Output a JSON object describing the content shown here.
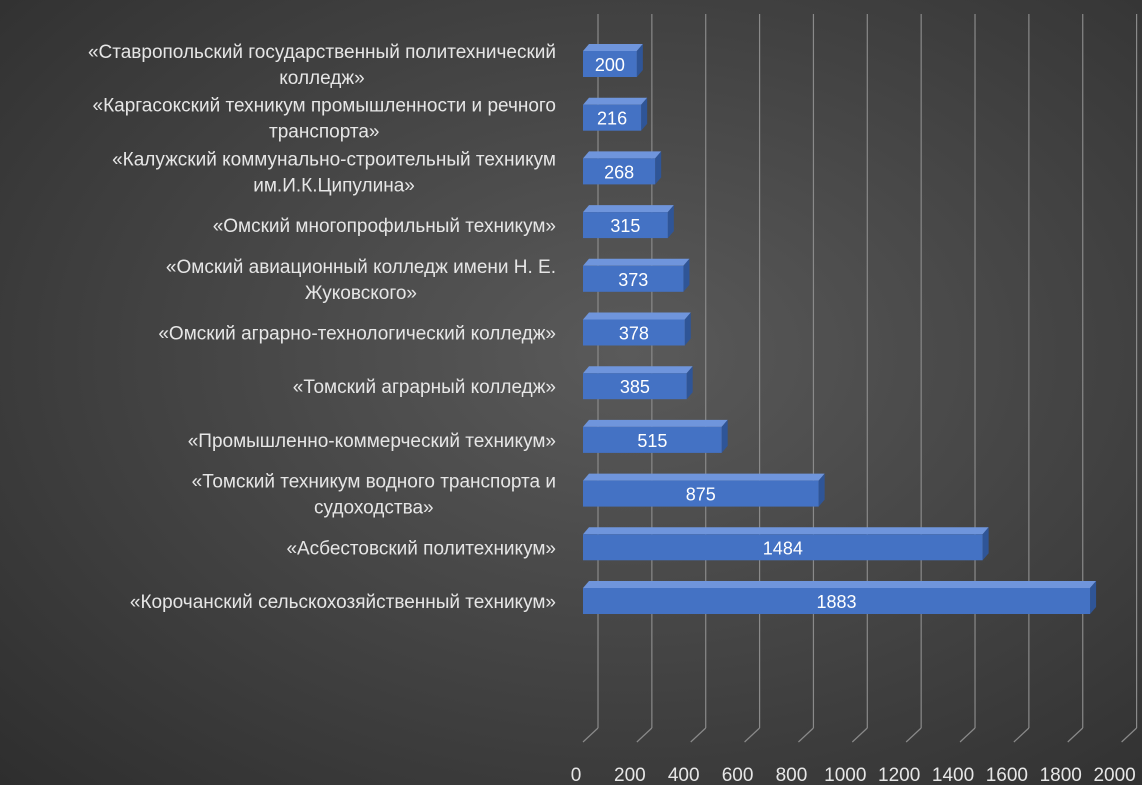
{
  "chart_data": {
    "type": "bar",
    "orientation": "horizontal",
    "style": "3d",
    "categories": [
      "«Ставропольский государственный политехнический колледж»",
      "«Каргасокский техникум промышленности и речного транспорта»",
      "«Калужский коммунально-строительный техникум им.И.К.Ципулина»",
      "«Омский многопрофильный техникум»",
      "«Омский авиационный колледж имени Н. Е. Жуковского»",
      "«Омский аграрно-технологический колледж»",
      "«Томский аграрный колледж»",
      "«Промышленно-коммерческий техникум»",
      "«Томский техникум водного транспорта и судоходства»",
      "«Асбестовский политехникум»",
      "«Корочанский сельскохозяйственный техникум»"
    ],
    "category_lines": [
      [
        "«Ставропольский государственный политехнический",
        "колледж»"
      ],
      [
        "«Каргасокский техникум промышленности и речного",
        "транспорта»"
      ],
      [
        "«Калужский коммунально-строительный техникум",
        "им.И.К.Ципулина»"
      ],
      [
        "«Омский многопрофильный техникум»"
      ],
      [
        "«Омский авиационный колледж имени Н. Е.",
        "Жуковского»"
      ],
      [
        "«Омский аграрно-технологический колледж»"
      ],
      [
        "«Томский аграрный колледж»"
      ],
      [
        "«Промышленно-коммерческий техникум»"
      ],
      [
        "«Томский техникум водного транспорта и",
        "судоходства»"
      ],
      [
        "«Асбестовский политехникум»"
      ],
      [
        "«Корочанский сельскохозяйственный техникум»"
      ]
    ],
    "values": [
      200,
      216,
      268,
      315,
      373,
      378,
      385,
      515,
      875,
      1484,
      1883
    ],
    "data_labels": [
      "200",
      "216",
      "268",
      "315",
      "373",
      "378",
      "385",
      "515",
      "875",
      "1484",
      "1883"
    ],
    "xlim": [
      0,
      2000
    ],
    "x_ticks": [
      0,
      200,
      400,
      600,
      800,
      1000,
      1200,
      1400,
      1600,
      1800,
      2000
    ],
    "x_tick_labels": [
      "0",
      "200",
      "400",
      "600",
      "800",
      "1000",
      "1200",
      "1400",
      "1600",
      "1800",
      "2000"
    ],
    "title": "",
    "xlabel": "",
    "ylabel": "",
    "grid": true,
    "legend": "none",
    "colors": {
      "bar_front": "#4472c4",
      "bar_top": "#6f95dc",
      "bar_side": "#2f5597",
      "label_text": "#ffffff",
      "grid": "#8a8a8a",
      "category_text": "#e6e6e6",
      "tick_text": "#e6e6e6"
    }
  }
}
